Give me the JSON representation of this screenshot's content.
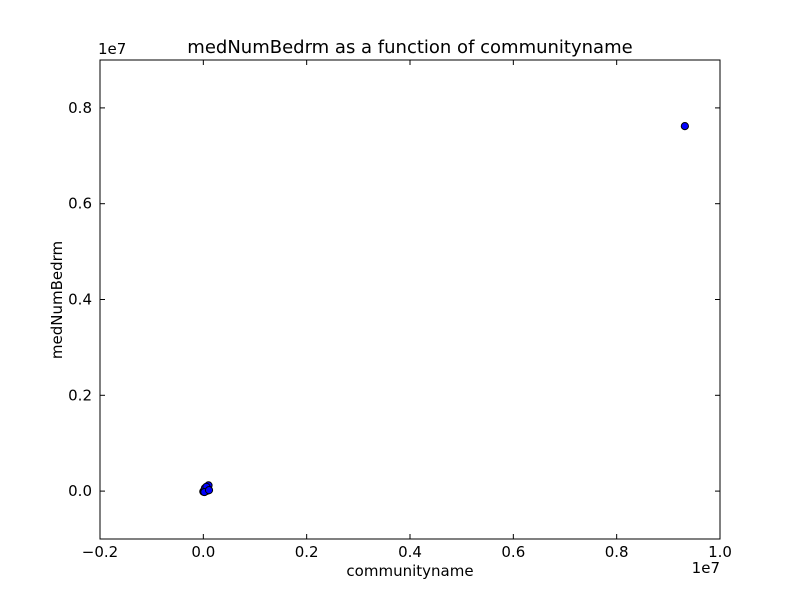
{
  "chart_data": {
    "type": "scatter",
    "title": "medNumBedrm as a function of communityname",
    "xlabel": "communityname",
    "ylabel": "medNumBedrm",
    "x_offset_label": "1e7",
    "y_offset_label": "1e7",
    "xlim": [
      -0.2,
      1.0
    ],
    "ylim": [
      -0.1,
      0.9
    ],
    "x_ticks": [
      -0.2,
      0.0,
      0.2,
      0.4,
      0.6,
      0.8,
      1.0
    ],
    "x_tick_labels": [
      "−0.2",
      "0.0",
      "0.2",
      "0.4",
      "0.6",
      "0.8",
      "1.0"
    ],
    "y_ticks": [
      0.0,
      0.2,
      0.4,
      0.6,
      0.8
    ],
    "y_tick_labels": [
      "0.0",
      "0.2",
      "0.4",
      "0.6",
      "0.8"
    ],
    "grid": false,
    "marker_color": "#0000ff",
    "marker_edge_color": "#000000",
    "points": [
      {
        "x": 0.932,
        "y": 0.762
      },
      {
        "x": 0.0,
        "y": -0.001
      },
      {
        "x": 0.001,
        "y": 0.0
      },
      {
        "x": 0.002,
        "y": 0.001
      },
      {
        "x": 0.003,
        "y": 0.002
      },
      {
        "x": 0.004,
        "y": 0.003
      },
      {
        "x": 0.005,
        "y": 0.004
      },
      {
        "x": 0.006,
        "y": 0.005
      },
      {
        "x": 0.007,
        "y": 0.006
      },
      {
        "x": 0.008,
        "y": 0.008
      },
      {
        "x": 0.009,
        "y": 0.01
      },
      {
        "x": 0.01,
        "y": 0.012
      },
      {
        "x": 0.008,
        "y": 0.001
      },
      {
        "x": 0.01,
        "y": 0.003
      },
      {
        "x": 0.005,
        "y": 0.0
      },
      {
        "x": 0.003,
        "y": 0.006
      },
      {
        "x": 0.006,
        "y": 0.009
      },
      {
        "x": 0.002,
        "y": -0.002
      },
      {
        "x": 0.011,
        "y": 0.002
      }
    ]
  }
}
